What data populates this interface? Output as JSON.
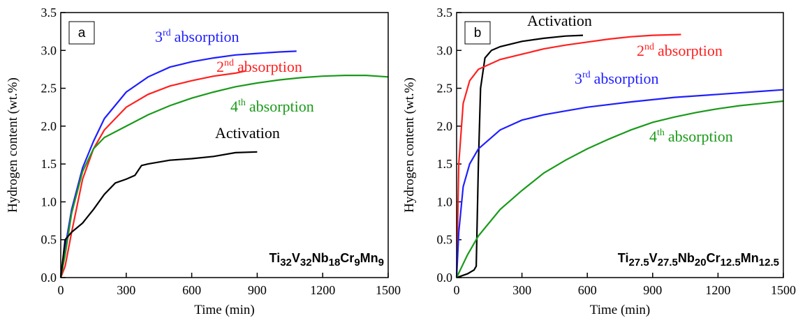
{
  "chart_data": [
    {
      "type": "line",
      "panel": "a",
      "xlabel": "Time (min)",
      "ylabel": "Hydrogen content (wt.%)",
      "formula": [
        "Ti",
        "32",
        "V",
        "32",
        "Nb",
        "18",
        "Cr",
        "9",
        "Mn",
        "9"
      ],
      "xlim": [
        0,
        1500
      ],
      "xticks": [
        0,
        300,
        600,
        900,
        1200,
        1500
      ],
      "ylim": [
        0,
        3.5
      ],
      "yticks": [
        {
          "value": 0,
          "label": "0.0"
        },
        0.5,
        {
          "value": 1,
          "label": "1.0"
        },
        1.5,
        {
          "value": 2,
          "label": "2.0"
        },
        2.5,
        {
          "value": 3,
          "label": "3.0"
        },
        3.5
      ],
      "series": [
        {
          "name": [
            "3",
            "rd",
            "absorption"
          ],
          "color": "#1f1fff",
          "x": [
            0,
            20,
            50,
            100,
            150,
            200,
            300,
            400,
            500,
            600,
            700,
            800,
            900,
            1000,
            1080
          ],
          "values": [
            0,
            0.4,
            0.9,
            1.45,
            1.8,
            2.1,
            2.45,
            2.65,
            2.78,
            2.85,
            2.9,
            2.94,
            2.96,
            2.98,
            2.99
          ]
        },
        {
          "name": [
            "2",
            "nd",
            "absorption"
          ],
          "color": "#ff2020",
          "x": [
            0,
            20,
            50,
            100,
            150,
            200,
            300,
            400,
            500,
            600,
            700,
            800,
            850
          ],
          "values": [
            0,
            0.15,
            0.6,
            1.3,
            1.7,
            1.95,
            2.25,
            2.42,
            2.53,
            2.6,
            2.66,
            2.7,
            2.73
          ]
        },
        {
          "name": [
            "4",
            "th",
            "absorption"
          ],
          "color": "#1a9a1a",
          "x": [
            0,
            20,
            50,
            100,
            150,
            200,
            300,
            400,
            500,
            600,
            700,
            800,
            900,
            1000,
            1100,
            1200,
            1300,
            1400,
            1500
          ],
          "values": [
            0,
            0.3,
            0.85,
            1.4,
            1.7,
            1.85,
            2.0,
            2.15,
            2.27,
            2.37,
            2.45,
            2.52,
            2.57,
            2.61,
            2.64,
            2.66,
            2.67,
            2.67,
            2.65
          ]
        },
        {
          "name": [
            "Activation"
          ],
          "color": "#000000",
          "x": [
            0,
            20,
            50,
            100,
            150,
            200,
            250,
            300,
            340,
            370,
            400,
            500,
            600,
            700,
            800,
            900
          ],
          "values": [
            0,
            0.5,
            0.6,
            0.72,
            0.9,
            1.1,
            1.25,
            1.3,
            1.35,
            1.48,
            1.5,
            1.55,
            1.57,
            1.6,
            1.65,
            1.66
          ]
        }
      ]
    },
    {
      "type": "line",
      "panel": "b",
      "xlabel": "Time (min)",
      "ylabel": "Hydrogen content (wt.%)",
      "formula": [
        "Ti",
        "27.5",
        "V",
        "27.5",
        "Nb",
        "20",
        "Cr",
        "12.5",
        "Mn",
        "12.5"
      ],
      "xlim": [
        0,
        1500
      ],
      "xticks": [
        0,
        300,
        600,
        900,
        1200,
        1500
      ],
      "ylim": [
        0,
        3.5
      ],
      "yticks": [
        {
          "value": 0,
          "label": "0.0"
        },
        0.5,
        {
          "value": 1,
          "label": "1.0"
        },
        1.5,
        {
          "value": 2,
          "label": "2.0"
        },
        2.5,
        {
          "value": 3,
          "label": "3.0"
        },
        3.5
      ],
      "series": [
        {
          "name": [
            "Activation"
          ],
          "color": "#000000",
          "x": [
            0,
            50,
            80,
            90,
            100,
            110,
            130,
            160,
            200,
            300,
            400,
            500,
            580
          ],
          "values": [
            0,
            0.05,
            0.1,
            0.15,
            1.5,
            2.5,
            2.9,
            3.0,
            3.05,
            3.12,
            3.16,
            3.19,
            3.2
          ]
        },
        {
          "name": [
            "2",
            "nd",
            "absorption"
          ],
          "color": "#ff2020",
          "x": [
            0,
            10,
            30,
            60,
            100,
            200,
            300,
            400,
            500,
            600,
            700,
            800,
            900,
            1030
          ],
          "values": [
            0,
            1.5,
            2.3,
            2.6,
            2.75,
            2.88,
            2.95,
            3.02,
            3.07,
            3.11,
            3.15,
            3.18,
            3.2,
            3.21
          ]
        },
        {
          "name": [
            "3",
            "rd",
            "absorption"
          ],
          "color": "#1f1fff",
          "x": [
            0,
            10,
            30,
            60,
            100,
            200,
            300,
            400,
            500,
            600,
            800,
            1000,
            1200,
            1400,
            1500
          ],
          "values": [
            0,
            0.6,
            1.2,
            1.5,
            1.7,
            1.95,
            2.08,
            2.15,
            2.2,
            2.25,
            2.32,
            2.38,
            2.42,
            2.46,
            2.48
          ]
        },
        {
          "name": [
            "4",
            "th",
            "absorption"
          ],
          "color": "#1a9a1a",
          "x": [
            0,
            50,
            100,
            200,
            300,
            400,
            500,
            600,
            700,
            800,
            900,
            1000,
            1100,
            1200,
            1300,
            1400,
            1500
          ],
          "values": [
            0,
            0.3,
            0.55,
            0.9,
            1.15,
            1.38,
            1.55,
            1.7,
            1.83,
            1.95,
            2.05,
            2.12,
            2.18,
            2.23,
            2.27,
            2.3,
            2.33
          ]
        }
      ]
    }
  ]
}
